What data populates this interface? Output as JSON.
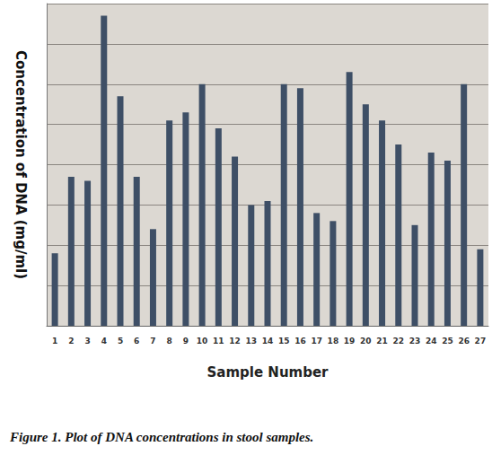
{
  "chart_data": {
    "type": "bar",
    "title": "Figure 1. Plot of DNA concentrations in stool samples.",
    "x_label": "Sample Number",
    "y_label": "Concentration of DNA (mg/ml)",
    "categories": [
      "1",
      "2",
      "3",
      "4",
      "5",
      "6",
      "7",
      "8",
      "9",
      "10",
      "11",
      "12",
      "13",
      "14",
      "15",
      "16",
      "17",
      "18",
      "19",
      "20",
      "21",
      "22",
      "23",
      "24",
      "25",
      "26",
      "27"
    ],
    "values": [
      1.8,
      3.7,
      3.6,
      7.7,
      5.7,
      3.7,
      2.4,
      5.1,
      5.3,
      6.0,
      4.9,
      4.2,
      3.0,
      3.1,
      6.0,
      5.9,
      2.8,
      2.6,
      6.3,
      5.5,
      5.1,
      4.5,
      2.5,
      4.3,
      4.1,
      6.0,
      1.9
    ],
    "color": "#3e4f66",
    "ylim": [
      0,
      8
    ],
    "yticks": [
      0,
      1,
      2,
      3,
      4,
      5,
      6,
      7,
      8
    ],
    "grid": true,
    "tick_labels": "x"
  }
}
